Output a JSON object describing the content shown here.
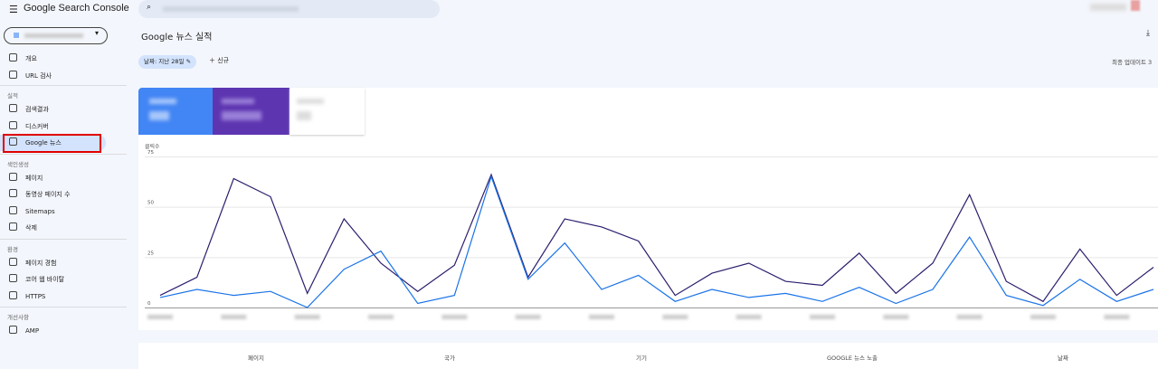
{
  "header": {
    "app_name": "Google Search Console"
  },
  "nav": {
    "top": [
      "개요",
      "URL 검사"
    ],
    "sections": [
      {
        "title": "실적",
        "items": [
          "검색결과",
          "디스커버",
          "Google 뉴스"
        ]
      },
      {
        "title": "색인생성",
        "items": [
          "페이지",
          "동영상 페이지 수",
          "Sitemaps",
          "삭제"
        ]
      },
      {
        "title": "환경",
        "items": [
          "페이지 경험",
          "코어 웹 바이탈",
          "HTTPS"
        ]
      },
      {
        "title": "개선사항",
        "items": [
          "AMP"
        ]
      }
    ]
  },
  "page": {
    "title": "Google 뉴스 실적",
    "date_filter": "날짜: 지난 28일",
    "new_button": "신규",
    "last_update": "최종 업데이트 3"
  },
  "chart_data": {
    "type": "line",
    "y_label": "클릭수",
    "categories": [
      null,
      null,
      null,
      null,
      null,
      null,
      null,
      null,
      null,
      null,
      null,
      null,
      null,
      null,
      null,
      null,
      null,
      null,
      null,
      null,
      null,
      null,
      null,
      null,
      null,
      null,
      null,
      null
    ],
    "series": [
      {
        "color": "#2c1d6e",
        "values": [
          6,
          15,
          64,
          55,
          7,
          44,
          22,
          8,
          21,
          66,
          15,
          44,
          40,
          33,
          6,
          17,
          22,
          13,
          11,
          27,
          7,
          22,
          56,
          13,
          3,
          29,
          6,
          20
        ]
      },
      {
        "color": "#1a73e8",
        "values": [
          5,
          9,
          6,
          8,
          0,
          19,
          28,
          2,
          6,
          65,
          14,
          32,
          9,
          16,
          3,
          9,
          5,
          7,
          3,
          10,
          2,
          9,
          35,
          6,
          1,
          14,
          3,
          9
        ]
      }
    ],
    "ylim": [
      0,
      75
    ],
    "yticks": [
      0,
      25,
      50,
      75
    ],
    "grid": true
  },
  "table": {
    "headers": [
      "페이지",
      "국가",
      "기기",
      "GOOGLE 뉴스 노출",
      "날짜"
    ]
  }
}
